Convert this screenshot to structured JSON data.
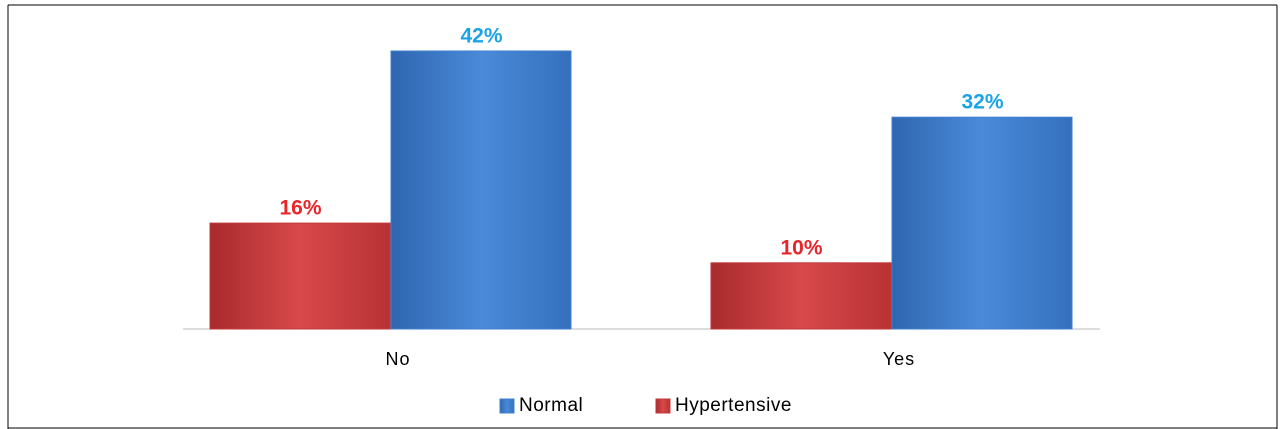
{
  "chart_data": {
    "type": "bar",
    "categories": [
      "No",
      "Yes"
    ],
    "series": [
      {
        "name": "Hypertensive",
        "color": "#c0393b",
        "label_color": "#e8262a",
        "values": [
          16,
          10
        ],
        "value_labels": [
          "16%",
          "10%"
        ]
      },
      {
        "name": "Normal",
        "color": "#3f7fcf",
        "label_color": "#1aa3e8",
        "values": [
          42,
          32
        ],
        "value_labels": [
          "42%",
          "32%"
        ]
      }
    ],
    "legend": "bottom"
  }
}
